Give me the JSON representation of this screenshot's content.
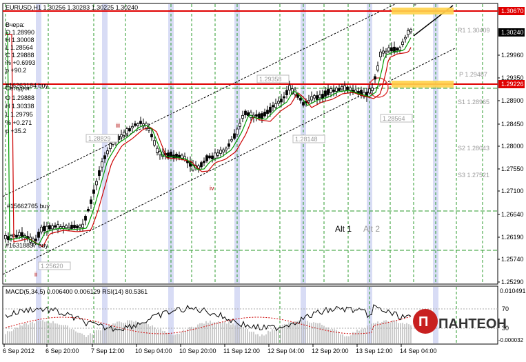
{
  "symbol_header": "EURUSD,H1  1.30256 1.30283 1.30225 1.30240",
  "yesterday": {
    "title": "Вчера:",
    "open": "O 1.28990",
    "high": "H 1.30008",
    "low": "L 1.28564",
    "close": "C 1.29888",
    "change_pct": "% +0.6993",
    "points": "p +90.2"
  },
  "today": {
    "title": "Сегодня:",
    "open": "O 1.29888",
    "high": "H 1.30338",
    "low": "L 1.29795",
    "change_pct": "% +0.271",
    "points": "p +35.2"
  },
  "order_labels": [
    "#16263184 buy",
    "#15662765 buy",
    "#16318837 buy"
  ],
  "wave_labels": [
    "iii",
    "iv",
    "ii"
  ],
  "level_boxes": [
    "1.28829",
    "1.29358",
    "1.28148",
    "1.28564",
    "1.25620"
  ],
  "pivot_labels": [
    "R1 1.30409",
    "P 1.29487",
    "S1 1.28965",
    "S2 1.28043",
    "S3 1.27521"
  ],
  "alt_labels": [
    "Alt 1",
    "Alt 2"
  ],
  "price_scale": [
    "1.29960",
    "1.29350",
    "1.28900",
    "1.28450",
    "1.28000",
    "1.27550",
    "1.27100",
    "1.26640",
    "1.26190",
    "1.25740",
    "1.25290"
  ],
  "price_badges": {
    "resistance": "1.30670",
    "current": "1.30240",
    "support": "1.29226"
  },
  "time_axis": [
    "6 Sep 2012",
    "6 Sep 20:00",
    "7 Sep 12:00",
    "10 Sep 04:00",
    "10 Sep 20:00",
    "11 Sep 12:00",
    "12 Sep 04:00",
    "12 Sep 20:00",
    "13 Sep 12:00",
    "14 Sep 04:00"
  ],
  "macd_header": "MACD(5,34,5) 0.006400 0.006129 RSI(14) 80.5361",
  "macd_scale": [
    "0.010491",
    "70",
    "30",
    "-0.000032"
  ],
  "logo_text": "ПАНТЕОН",
  "colors": {
    "level_line": "#e00000",
    "band": "#d8dcf5",
    "grid": "#2a9a2a",
    "candle": "#000000",
    "ma_green": "#009900",
    "ma_red": "#cc0000",
    "highlight": "#ffd24a"
  }
}
